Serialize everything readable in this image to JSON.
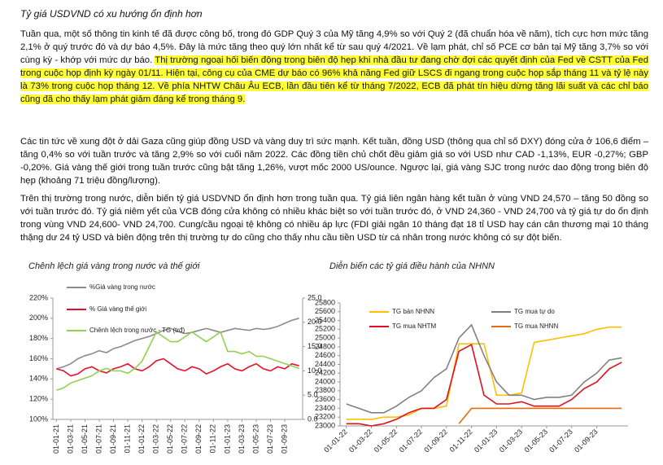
{
  "document": {
    "title": "Tỷ giá USDVND có xu hướng ổn định hơn",
    "paragraphs": [
      {
        "text": "Tuần qua, một số thông tin kinh tế đã được công bố, trong đó GDP Quý 3 của Mỹ tăng 4,9% so với Quý 2 (đã chuẩn hóa về năm), tích cực hơn mức tăng 2,1% ở quý trước đó và dự báo 4,5%. Đây là mức tăng theo quý lớn nhất kể từ sau quý 4/2021. Về lạm phát, chỉ số PCE cơ bản tại Mỹ tăng 3,7% so với cùng kỳ - khớp với mức dự báo. ",
        "highlight": "Thị trường ngoại hối biến động trong biên độ hẹp khi nhà đầu tư đang chờ đợi các quyết định của Fed về CSTT của Fed trong cuộc họp định kỳ ngày 01/11. Hiện tại, công cụ của CME dự báo có 96% khả năng Fed giữ LSCS đi ngang trong cuộc họp sắp tháng 11 và tỷ lệ này là 73% trong cuộc họp tháng 12. Về phía NHTW Châu Âu ECB, lần đầu tiên kể từ tháng 7/2022, ECB đã phát tín hiệu dừng tăng lãi suất và các chỉ báo cũng đã cho thấy lạm phát giảm đáng kể trong tháng 9."
      },
      {
        "text": "Các tin tức về xung đột ở dải Gaza cũng giúp đồng USD và vàng duy trì sức mạnh. Kết tuần, đồng USD (thông qua chỉ số DXY) đóng cửa ở 106,6 điểm – tăng 0,4% so với tuần trước và tăng 2,9% so với cuối năm 2022. Các đồng tiền chủ chốt đều giảm giá so với USD như CAD -1,13%, EUR -0,27%; GBP -0,20%. Giá vàng thế giới trong tuần trước cũng bật tăng 1,26%, vượt mốc 2000 US/ounce. Ngược lại, giá vàng SJC trong nước dao động trong biên độ hẹp (khoảng 71 triệu đồng/lượng)."
      },
      {
        "text": "Trên thị trường trong nước, diễn biến tỷ giá USDVND ổn định hơn trong tuần qua. Tỷ giá liên ngân hàng kết tuần ở vùng VND 24,570 – tăng 50 đồng so với tuần trước đó. Tỷ giá niêm yết của VCB đóng cửa không có nhiều khác biệt so với tuần trước đó, ở VND 24,360 - VND 24,700 và tỷ giá tự do ổn định trong vùng VND 24,600- VND 24,700. Cung/cầu ngoại tệ không có nhiều áp lực (FDI giải ngân 10 tháng đạt 18 tỉ USD hay cán cân thương mại 10 tháng thặng dư 24 tỷ USD và biên động trên thị trường tự do cũng cho thấy nhu cầu tiền USD từ cá nhân trong nước không có sự đột biến."
      }
    ]
  },
  "chart_data": [
    {
      "type": "line",
      "title": "Chênh lệch giá vàng trong nước và thế giới",
      "grid": false,
      "categories": [
        "01-01-21",
        null,
        "01-03-21",
        null,
        "01-05-21",
        null,
        "01-07-21",
        null,
        "01-09-21",
        null,
        "01-11-21",
        null,
        "01-01-22",
        null,
        "01-03-22",
        null,
        "01-05-22",
        null,
        "01-07-22",
        null,
        "01-09-22",
        null,
        "01-11-22",
        null,
        "01-01-23",
        null,
        "01-03-23",
        null,
        "01-05-23",
        null,
        "01-07-23",
        null,
        "01-09-23",
        null,
        null
      ],
      "ylim": [
        100,
        220
      ],
      "yticks": [
        {
          "value": 100,
          "label": "100%"
        },
        {
          "value": 120,
          "label": "120%"
        },
        {
          "value": 140,
          "label": "140%"
        },
        {
          "value": 160,
          "label": "160%"
        },
        {
          "value": 180,
          "label": "180%"
        },
        {
          "value": 200,
          "label": "200%"
        },
        {
          "value": 220,
          "label": "220%"
        }
      ],
      "y2lim": [
        0,
        25
      ],
      "y2ticks": [
        {
          "value": 0,
          "label": "0.0"
        },
        {
          "value": 5,
          "label": "5.0"
        },
        {
          "value": 10,
          "label": "10.0"
        },
        {
          "value": 15,
          "label": "15.0"
        },
        {
          "value": 20,
          "label": "20.0"
        },
        {
          "value": 25,
          "label": "25.0"
        }
      ],
      "series": [
        {
          "name": "%Giá vàng trong nước",
          "color": "#8c8c8c",
          "values": [
            150,
            152,
            155,
            160,
            163,
            165,
            168,
            166,
            170,
            172,
            175,
            178,
            180,
            182,
            185,
            188,
            190,
            187,
            185,
            186,
            188,
            190,
            188,
            186,
            188,
            190,
            189,
            188,
            190,
            189,
            190,
            192,
            195,
            198,
            200
          ]
        },
        {
          "name": "% Giá vàng thế giới",
          "color": "#e8102a",
          "values": [
            150,
            148,
            143,
            145,
            150,
            152,
            148,
            146,
            150,
            152,
            155,
            150,
            148,
            152,
            158,
            160,
            155,
            150,
            148,
            152,
            150,
            145,
            148,
            152,
            155,
            150,
            148,
            152,
            155,
            150,
            148,
            152,
            150,
            155,
            153
          ]
        },
        {
          "name": "Chênh lệch trong nước - TG (trđ)",
          "color": "#92d050",
          "axis": "y2",
          "values": [
            6,
            6.5,
            7.5,
            8,
            8.5,
            9,
            10,
            10.5,
            10,
            10,
            9.5,
            10.5,
            12,
            15,
            18,
            17,
            16,
            16,
            17,
            18,
            17,
            16,
            17,
            18,
            14,
            14,
            13.5,
            14,
            13,
            13,
            12.5,
            12,
            11.5,
            11,
            10.5
          ]
        }
      ]
    },
    {
      "type": "line",
      "title": "Diễn biến các tỷ giá điều hành của NHNN",
      "grid": false,
      "categories": [
        "01-01-22",
        null,
        "01-03-22",
        null,
        "01-05-22",
        null,
        "01-07-22",
        null,
        "01-09-22",
        null,
        "01-11-22",
        null,
        "01-01-23",
        null,
        "01-03-23",
        null,
        "01-05-23",
        null,
        "01-07-23",
        null,
        "01-09-23",
        null,
        null
      ],
      "ylim": [
        23000,
        25800
      ],
      "yticks": [
        23000,
        23200,
        23400,
        23600,
        23800,
        24000,
        24200,
        24400,
        24600,
        24800,
        25000,
        25200,
        25400,
        25600,
        25800
      ],
      "series": [
        {
          "name": "TG bán NHNN",
          "color": "#ffc000",
          "values": [
            23150,
            23150,
            23150,
            23200,
            23200,
            23250,
            23400,
            23400,
            23450,
            24870,
            24870,
            24870,
            23700,
            23700,
            23750,
            24900,
            24950,
            25000,
            25050,
            25100,
            25200,
            25250,
            25250
          ]
        },
        {
          "name": "TG mua tự do",
          "color": "#808080",
          "values": [
            23500,
            23400,
            23300,
            23300,
            23450,
            23650,
            23800,
            24100,
            24300,
            25000,
            25300,
            24600,
            24000,
            23700,
            23700,
            23600,
            23650,
            23650,
            23700,
            24000,
            24200,
            24500,
            24550
          ]
        },
        {
          "name": "TG mua NHTM",
          "color": "#e0101e",
          "values": [
            23050,
            23050,
            23000,
            23050,
            23150,
            23300,
            23400,
            23400,
            23600,
            24700,
            24850,
            23700,
            23500,
            23500,
            23550,
            23450,
            23450,
            23450,
            23600,
            23850,
            24000,
            24300,
            24450
          ]
        },
        {
          "name": "TG mua NHNN",
          "color": "#e46c0a",
          "values": [
            null,
            null,
            null,
            null,
            null,
            null,
            null,
            null,
            null,
            23050,
            23400,
            23400,
            23400,
            23400,
            23400,
            23400,
            23400,
            23400,
            23400,
            23400,
            23400,
            23400,
            23400
          ]
        }
      ]
    }
  ]
}
